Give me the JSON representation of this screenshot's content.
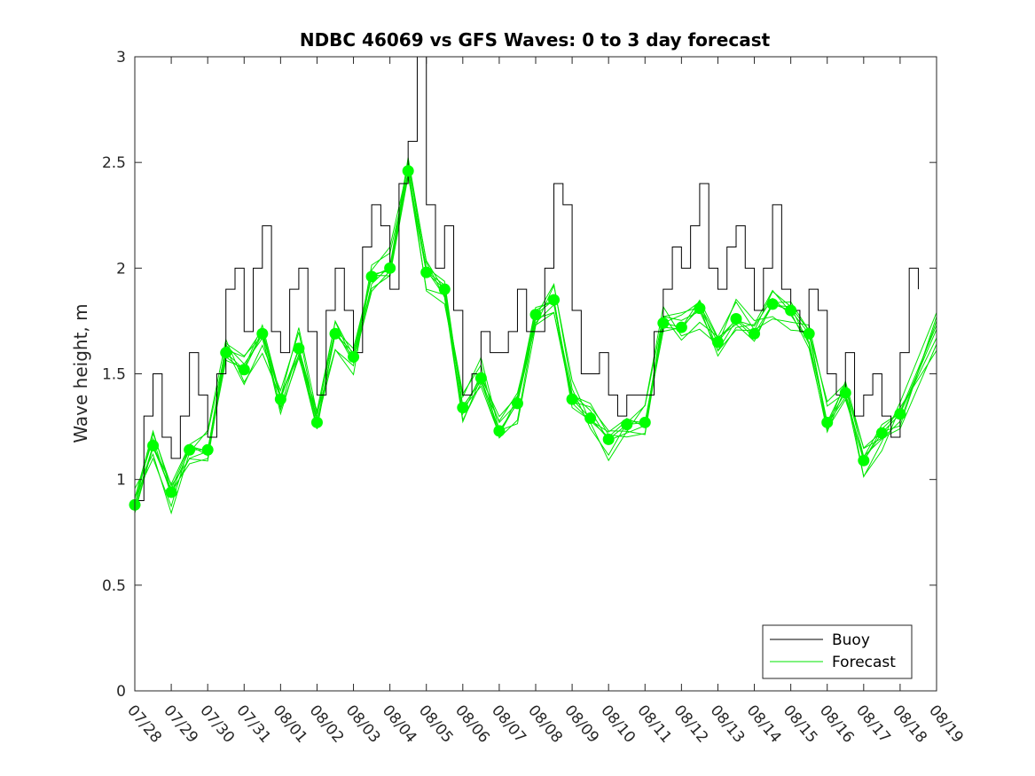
{
  "chart_data": {
    "type": "line",
    "title": "NDBC 46069 vs GFS Waves: 0 to 3 day forecast",
    "xlabel": "",
    "ylabel": "Wave height, m",
    "xlim": [
      0,
      22
    ],
    "ylim": [
      0,
      3
    ],
    "yticks": [
      0,
      0.5,
      1,
      1.5,
      2,
      2.5,
      3
    ],
    "ytick_labels": [
      "0",
      "0.5",
      "1",
      "1.5",
      "2",
      "2.5",
      "3"
    ],
    "xtick_labels": [
      "07/28",
      "07/29",
      "07/30",
      "07/31",
      "08/01",
      "08/02",
      "08/03",
      "08/04",
      "08/05",
      "08/06",
      "08/07",
      "08/08",
      "08/09",
      "08/10",
      "08/11",
      "08/12",
      "08/13",
      "08/14",
      "08/15",
      "08/16",
      "08/17",
      "08/18",
      "08/19"
    ],
    "grid": false,
    "legend": {
      "position": "bottom-right",
      "entries": [
        "Buoy",
        "Forecast"
      ]
    },
    "colors": {
      "buoy": "#000000",
      "forecast": "#00e600",
      "marker": "#00ff00"
    },
    "buoy": {
      "x": [
        0.0,
        0.25,
        0.5,
        0.75,
        1.0,
        1.25,
        1.5,
        1.75,
        2.0,
        2.25,
        2.5,
        2.75,
        3.0,
        3.25,
        3.5,
        3.75,
        4.0,
        4.25,
        4.5,
        4.75,
        5.0,
        5.25,
        5.5,
        5.75,
        6.0,
        6.25,
        6.5,
        6.75,
        7.0,
        7.25,
        7.5,
        7.75,
        8.0,
        8.25,
        8.5,
        8.75,
        9.0,
        9.25,
        9.5,
        9.75,
        10.0,
        10.25,
        10.5,
        10.75,
        11.0,
        11.25,
        11.5,
        11.75,
        12.0,
        12.25,
        12.5,
        12.75,
        13.0,
        13.25,
        13.5,
        13.75,
        14.0,
        14.25,
        14.5,
        14.75,
        15.0,
        15.25,
        15.5,
        15.75,
        16.0,
        16.25,
        16.5,
        16.75,
        17.0,
        17.25,
        17.5,
        17.75,
        18.0,
        18.25,
        18.5,
        18.75,
        19.0,
        19.25,
        19.5,
        19.75,
        20.0,
        20.25,
        20.5,
        20.75,
        21.0,
        21.25,
        21.5
      ],
      "values": [
        0.9,
        1.3,
        1.5,
        1.2,
        1.1,
        1.3,
        1.6,
        1.4,
        1.2,
        1.5,
        1.9,
        2.0,
        1.7,
        2.0,
        2.2,
        1.7,
        1.6,
        1.9,
        2.0,
        1.7,
        1.4,
        1.8,
        2.0,
        1.8,
        1.6,
        2.1,
        2.3,
        2.2,
        1.9,
        2.4,
        2.6,
        3.0,
        2.3,
        2.0,
        2.2,
        1.8,
        1.4,
        1.5,
        1.7,
        1.6,
        1.6,
        1.7,
        1.9,
        1.7,
        1.7,
        2.0,
        2.4,
        2.3,
        1.8,
        1.5,
        1.5,
        1.6,
        1.4,
        1.3,
        1.4,
        1.4,
        1.4,
        1.7,
        1.9,
        2.1,
        2.0,
        2.2,
        2.4,
        2.0,
        1.9,
        2.1,
        2.2,
        2.0,
        1.8,
        2.0,
        2.3,
        1.9,
        1.8,
        1.7,
        1.9,
        1.8,
        1.5,
        1.4,
        1.6,
        1.3,
        1.4,
        1.5,
        1.3,
        1.2,
        1.6,
        2.0,
        1.9
      ]
    },
    "forecast_markers": {
      "x": [
        0,
        0.5,
        1,
        1.5,
        2,
        2.5,
        3,
        3.5,
        4,
        4.5,
        5,
        5.5,
        6,
        6.5,
        7,
        7.5,
        8,
        8.5,
        9,
        9.5,
        10,
        10.5,
        11,
        11.5,
        12,
        12.5,
        13,
        13.5,
        14,
        14.5,
        15,
        15.5,
        16,
        16.5,
        17,
        17.5,
        18,
        18.5,
        19,
        19.5,
        20,
        20.5,
        21
      ],
      "values": [
        0.88,
        1.16,
        0.94,
        1.14,
        1.14,
        1.6,
        1.52,
        1.69,
        1.38,
        1.62,
        1.27,
        1.69,
        1.58,
        1.96,
        2.0,
        2.46,
        1.98,
        1.9,
        1.34,
        1.48,
        1.23,
        1.36,
        1.78,
        1.85,
        1.38,
        1.29,
        1.19,
        1.26,
        1.27,
        1.74,
        1.72,
        1.81,
        1.65,
        1.76,
        1.69,
        1.83,
        1.8,
        1.69,
        1.27,
        1.41,
        1.09,
        1.22,
        1.31
      ]
    }
  }
}
